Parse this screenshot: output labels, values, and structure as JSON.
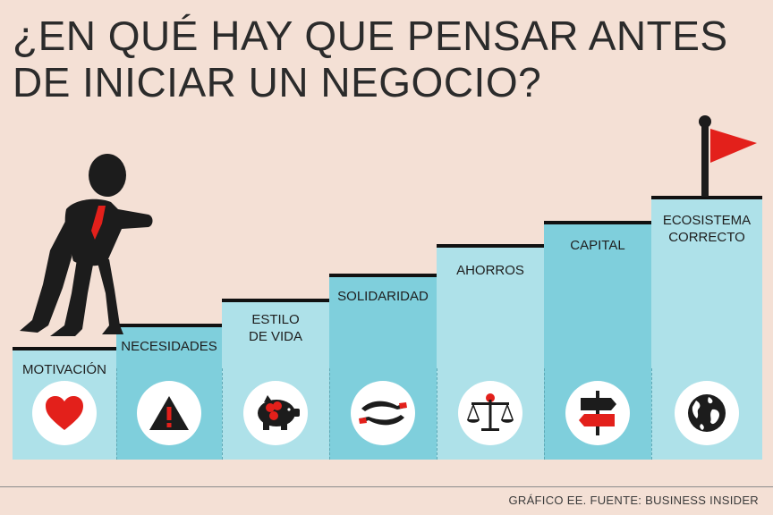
{
  "title": {
    "line1": "¿EN QUÉ HAY QUE PENSAR ANTES",
    "line2": "DE INICIAR UN NEGOCIO?"
  },
  "steps": [
    {
      "label": "MOTIVACIÓN",
      "icon": "heart-icon"
    },
    {
      "label": "NECESIDADES",
      "icon": "warning-icon"
    },
    {
      "label": "ESTILO\nDE VIDA",
      "icon": "piggy-bank-icon"
    },
    {
      "label": "SOLIDARIDAD",
      "icon": "hands-icon"
    },
    {
      "label": "AHORROS",
      "icon": "scale-icon"
    },
    {
      "label": "CAPITAL",
      "icon": "signpost-icon"
    },
    {
      "label": "ECOSISTEMA\nCORRECTO",
      "icon": "globe-icon"
    }
  ],
  "footer": "GRÁFICO EE. FUENTE: BUSINESS INSIDER",
  "colors": {
    "background": "#f4e0d5",
    "step_light": "#aee1e9",
    "step_dark": "#7fcfdc",
    "accent_red": "#e3201b",
    "figure": "#1c1c1c"
  }
}
